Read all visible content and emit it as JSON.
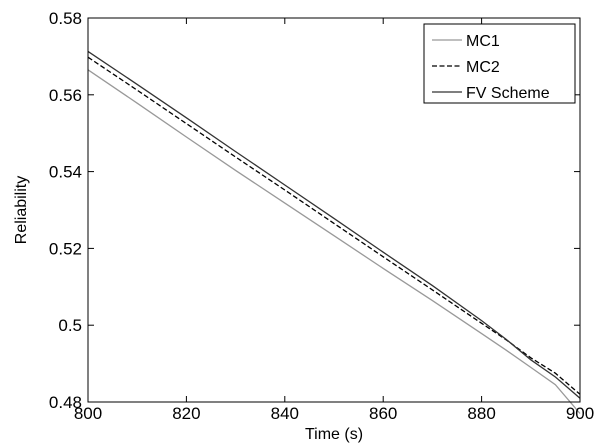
{
  "chart_data": {
    "type": "line",
    "title": "",
    "xlabel": "Time (s)",
    "ylabel": "Reliability",
    "xlim": [
      800,
      900
    ],
    "ylim": [
      0.48,
      0.58
    ],
    "xticks": [
      800,
      820,
      840,
      860,
      880,
      900
    ],
    "yticks": [
      0.48,
      0.5,
      0.52,
      0.54,
      0.56,
      0.58
    ],
    "ytick_labels": [
      "0.48",
      "0.5",
      "0.52",
      "0.54",
      "0.56",
      "0.58"
    ],
    "grid": false,
    "legend_position": "top-right",
    "series": [
      {
        "name": "MC1",
        "color": "#999999",
        "dash": "solid",
        "x": [
          800,
          810,
          820,
          830,
          840,
          850,
          860,
          870,
          880,
          885,
          890,
          895,
          900
        ],
        "y": [
          0.5665,
          0.5578,
          0.549,
          0.5403,
          0.5318,
          0.5233,
          0.5148,
          0.5064,
          0.4978,
          0.4935,
          0.489,
          0.4845,
          0.477
        ]
      },
      {
        "name": "MC2",
        "color": "#000000",
        "dash": "dashed",
        "x": [
          800,
          810,
          820,
          830,
          840,
          850,
          860,
          870,
          880,
          885,
          890,
          895,
          900
        ],
        "y": [
          0.5698,
          0.5612,
          0.5525,
          0.5438,
          0.5352,
          0.5265,
          0.5178,
          0.5092,
          0.5005,
          0.4962,
          0.4915,
          0.4875,
          0.482
        ]
      },
      {
        "name": "FV Scheme",
        "color": "#333333",
        "dash": "solid",
        "x": [
          800,
          810,
          820,
          830,
          840,
          850,
          860,
          870,
          880,
          885,
          890,
          895,
          900
        ],
        "y": [
          0.5713,
          0.5627,
          0.554,
          0.5452,
          0.5365,
          0.5278,
          0.519,
          0.5103,
          0.5012,
          0.4963,
          0.491,
          0.4865,
          0.481
        ]
      }
    ]
  }
}
